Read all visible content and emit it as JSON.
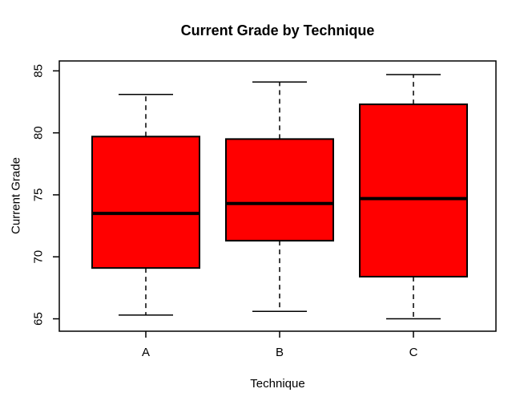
{
  "chart_data": {
    "type": "boxplot",
    "title": "Current Grade by Technique",
    "xlabel": "Technique",
    "ylabel": "Current Grade",
    "categories": [
      "A",
      "B",
      "C"
    ],
    "series": [
      {
        "name": "A",
        "whisker_low": 65.3,
        "q1": 69.1,
        "median": 73.5,
        "q3": 79.7,
        "whisker_high": 83.1
      },
      {
        "name": "B",
        "whisker_low": 65.6,
        "q1": 71.3,
        "median": 74.3,
        "q3": 79.5,
        "whisker_high": 84.1
      },
      {
        "name": "C",
        "whisker_low": 65.0,
        "q1": 68.4,
        "median": 74.7,
        "q3": 82.3,
        "whisker_high": 84.7
      }
    ],
    "ylim": [
      64.0,
      85.8
    ],
    "yticks": [
      65,
      70,
      75,
      80,
      85
    ],
    "grid": false,
    "legend": null,
    "box_fill": "#FF0000",
    "stroke_color": "#000000",
    "background": "#FFFFFF"
  }
}
